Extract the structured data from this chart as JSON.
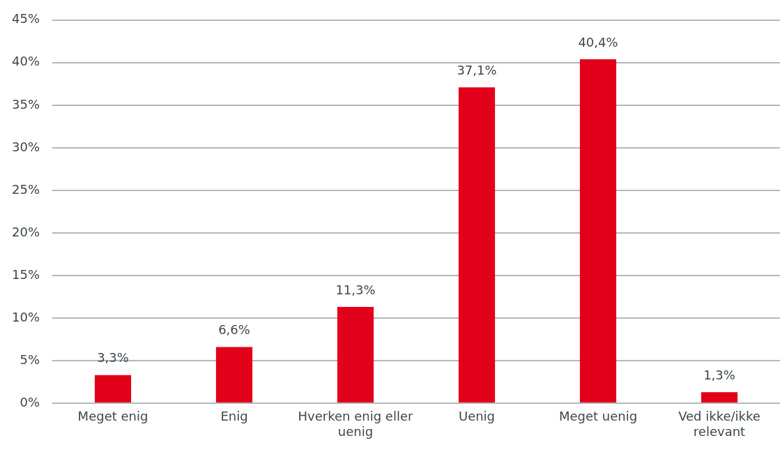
{
  "chart_data": {
    "type": "bar",
    "categories": [
      "Meget enig",
      "Enig",
      "Hverken enig eller uenig",
      "Uenig",
      "Meget uenig",
      "Ved ikke/ikke relevant"
    ],
    "values": [
      3.3,
      6.6,
      11.3,
      37.1,
      40.4,
      1.3
    ],
    "color": "#e2001a",
    "value_labels": [
      "3,3%",
      "6,6%",
      "11,3%",
      "37,1%",
      "40,4%",
      "1,3%"
    ],
    "ylim": [
      0,
      45
    ],
    "yticks": [
      {
        "value": 0,
        "label": "0%"
      },
      {
        "value": 5,
        "label": "5%"
      },
      {
        "value": 10,
        "label": "10%"
      },
      {
        "value": 15,
        "label": "15%"
      },
      {
        "value": 20,
        "label": "20%"
      },
      {
        "value": 25,
        "label": "25%"
      },
      {
        "value": 30,
        "label": "30%"
      },
      {
        "value": 35,
        "label": "35%"
      },
      {
        "value": 40,
        "label": "40%"
      },
      {
        "value": 45,
        "label": "45%"
      }
    ],
    "grid": "y",
    "legend": false
  }
}
